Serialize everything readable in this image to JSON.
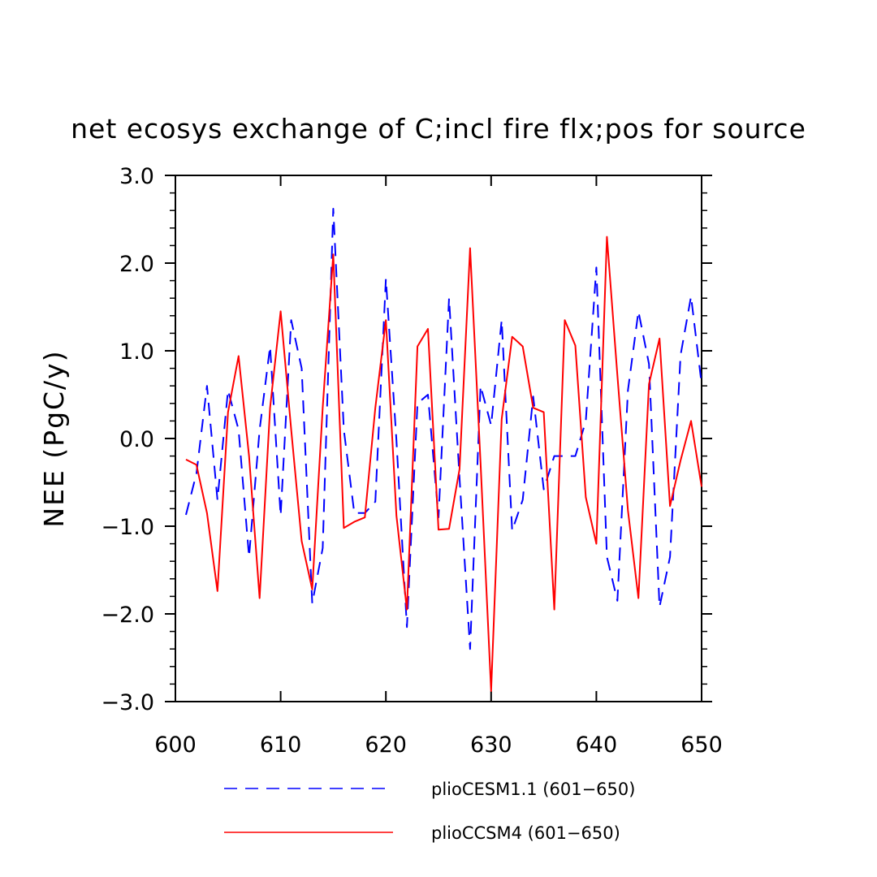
{
  "chart_data": {
    "type": "line",
    "title": "net ecosys exchange of C;incl fire flx;pos for source",
    "ylabel": "NEE  (PgC/y)",
    "xlabel": "",
    "xlim": [
      600,
      650
    ],
    "ylim": [
      -3.0,
      3.0
    ],
    "x_ticks": [
      600,
      610,
      620,
      630,
      640,
      650
    ],
    "x_tick_labels": [
      "600",
      "610",
      "620",
      "630",
      "640",
      "650"
    ],
    "y_ticks": [
      -3.0,
      -2.0,
      -1.0,
      0.0,
      1.0,
      2.0,
      3.0
    ],
    "y_tick_labels": [
      "−3.0",
      "−2.0",
      "−1.0",
      "0.0",
      "1.0",
      "2.0",
      "3.0"
    ],
    "x": [
      601,
      602,
      603,
      604,
      605,
      606,
      607,
      608,
      609,
      610,
      611,
      612,
      613,
      614,
      615,
      616,
      617,
      618,
      619,
      620,
      621,
      622,
      623,
      624,
      625,
      626,
      627,
      628,
      629,
      630,
      631,
      632,
      633,
      634,
      635,
      636,
      637,
      638,
      639,
      640,
      641,
      642,
      643,
      644,
      645,
      646,
      647,
      648,
      649,
      650
    ],
    "series": [
      {
        "name": "plioCESM1.1 (601−650)",
        "color": "#0000ff",
        "style": "dashed",
        "values": [
          -0.87,
          -0.4,
          0.6,
          -0.7,
          0.55,
          0.1,
          -1.35,
          0.1,
          1.05,
          -0.88,
          1.35,
          0.8,
          -1.88,
          -1.25,
          2.62,
          0.1,
          -0.85,
          -0.85,
          -0.72,
          1.82,
          -0.02,
          -2.15,
          0.4,
          0.5,
          -0.9,
          1.6,
          -0.45,
          -2.4,
          0.6,
          0.15,
          1.35,
          -1.05,
          -0.7,
          0.48,
          -0.58,
          -0.2,
          -0.2,
          -0.2,
          0.2,
          1.95,
          -1.35,
          -1.85,
          0.55,
          1.45,
          0.85,
          -1.92,
          -1.35,
          0.95,
          1.62,
          0.62
        ]
      },
      {
        "name": "plioCCSM4 (601−650)",
        "color": "#ff0000",
        "style": "solid",
        "values": [
          -0.24,
          -0.3,
          -0.85,
          -1.74,
          0.3,
          0.94,
          -0.2,
          -1.82,
          0.35,
          1.45,
          0.1,
          -1.17,
          -1.72,
          0.35,
          2.1,
          -1.02,
          -0.95,
          -0.9,
          0.35,
          1.35,
          -0.88,
          -1.95,
          1.05,
          1.25,
          -1.04,
          -1.03,
          -0.35,
          2.17,
          -0.28,
          -2.88,
          0.22,
          1.16,
          1.05,
          0.35,
          0.3,
          -1.95,
          1.35,
          1.06,
          -0.67,
          -1.2,
          2.3,
          0.72,
          -0.82,
          -1.82,
          0.62,
          1.14,
          -0.77,
          -0.25,
          0.2,
          -0.55
        ]
      }
    ],
    "legend_position": "bottom"
  }
}
